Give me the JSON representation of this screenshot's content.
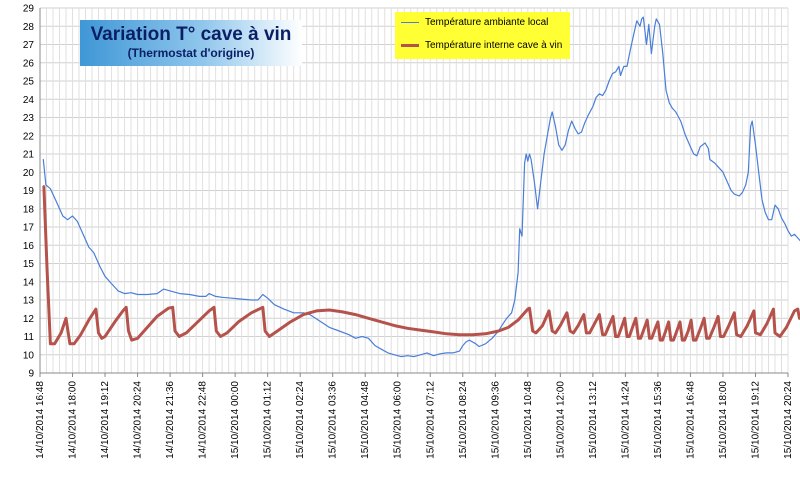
{
  "chart_data": {
    "type": "line",
    "title": "Variation T° cave à vin",
    "subtitle": "(Thermostat d'origine)",
    "xlabel": "",
    "ylabel": "",
    "ylim": [
      9,
      29
    ],
    "yticks": [
      9,
      10,
      11,
      12,
      13,
      14,
      15,
      16,
      17,
      18,
      19,
      20,
      21,
      22,
      23,
      24,
      25,
      26,
      27,
      28,
      29
    ],
    "grid": true,
    "legend_position": "top-center",
    "xtick_labels": [
      "14/10/2014 16:48",
      "14/10/2014 18:00",
      "14/10/2014 19:12",
      "14/10/2014 20:24",
      "14/10/2014 21:36",
      "14/10/2014 22:48",
      "15/10/2014 00:00",
      "15/10/2014 01:12",
      "15/10/2014 02:24",
      "15/10/2014 03:36",
      "15/10/2014 04:48",
      "15/10/2014 06:00",
      "15/10/2014 07:12",
      "15/10/2014 08:24",
      "15/10/2014 09:36",
      "15/10/2014 10:48",
      "15/10/2014 12:00",
      "15/10/2014 13:12",
      "15/10/2014 14:24",
      "15/10/2014 15:36",
      "15/10/2014 16:48",
      "15/10/2014 18:00",
      "15/10/2014 19:12",
      "15/10/2014 20:24"
    ],
    "series": [
      {
        "name": "Température ambiante local",
        "color": "#4a7ed8",
        "points": [
          [
            0.1,
            20.7
          ],
          [
            0.18,
            19.3
          ],
          [
            0.32,
            19.1
          ],
          [
            0.5,
            18.4
          ],
          [
            0.7,
            17.6
          ],
          [
            0.85,
            17.4
          ],
          [
            1.0,
            17.6
          ],
          [
            1.15,
            17.3
          ],
          [
            1.3,
            16.7
          ],
          [
            1.5,
            15.9
          ],
          [
            1.65,
            15.6
          ],
          [
            1.85,
            14.8
          ],
          [
            2.0,
            14.3
          ],
          [
            2.2,
            13.9
          ],
          [
            2.4,
            13.5
          ],
          [
            2.6,
            13.35
          ],
          [
            2.8,
            13.4
          ],
          [
            3.0,
            13.3
          ],
          [
            3.3,
            13.3
          ],
          [
            3.6,
            13.35
          ],
          [
            3.8,
            13.6
          ],
          [
            4.0,
            13.5
          ],
          [
            4.3,
            13.35
          ],
          [
            4.6,
            13.3
          ],
          [
            4.9,
            13.2
          ],
          [
            5.1,
            13.2
          ],
          [
            5.2,
            13.35
          ],
          [
            5.4,
            13.2
          ],
          [
            5.6,
            13.15
          ],
          [
            5.9,
            13.1
          ],
          [
            6.2,
            13.05
          ],
          [
            6.5,
            13.0
          ],
          [
            6.7,
            13.0
          ],
          [
            6.85,
            13.3
          ],
          [
            7.0,
            13.1
          ],
          [
            7.2,
            12.75
          ],
          [
            7.5,
            12.5
          ],
          [
            7.8,
            12.3
          ],
          [
            8.1,
            12.3
          ],
          [
            8.3,
            12.2
          ],
          [
            8.6,
            11.85
          ],
          [
            8.9,
            11.5
          ],
          [
            9.2,
            11.3
          ],
          [
            9.5,
            11.1
          ],
          [
            9.7,
            10.9
          ],
          [
            9.9,
            11.0
          ],
          [
            10.1,
            10.9
          ],
          [
            10.3,
            10.5
          ],
          [
            10.5,
            10.3
          ],
          [
            10.7,
            10.1
          ],
          [
            10.9,
            10.0
          ],
          [
            11.1,
            9.9
          ],
          [
            11.3,
            9.95
          ],
          [
            11.5,
            9.9
          ],
          [
            11.7,
            10.0
          ],
          [
            11.9,
            10.1
          ],
          [
            12.1,
            9.95
          ],
          [
            12.3,
            10.05
          ],
          [
            12.5,
            10.1
          ],
          [
            12.7,
            10.1
          ],
          [
            12.9,
            10.2
          ],
          [
            13.0,
            10.5
          ],
          [
            13.1,
            10.7
          ],
          [
            13.2,
            10.8
          ],
          [
            13.4,
            10.6
          ],
          [
            13.5,
            10.45
          ],
          [
            13.7,
            10.6
          ],
          [
            13.9,
            10.9
          ],
          [
            14.0,
            11.1
          ],
          [
            14.1,
            11.3
          ],
          [
            14.2,
            11.6
          ],
          [
            14.35,
            12.0
          ],
          [
            14.5,
            12.3
          ],
          [
            14.6,
            13.0
          ],
          [
            14.7,
            14.5
          ],
          [
            14.75,
            16.9
          ],
          [
            14.82,
            16.5
          ],
          [
            14.9,
            20.5
          ],
          [
            14.95,
            21.0
          ],
          [
            15.0,
            20.6
          ],
          [
            15.05,
            21.0
          ],
          [
            15.1,
            20.7
          ],
          [
            15.2,
            19.5
          ],
          [
            15.3,
            18.0
          ],
          [
            15.4,
            19.5
          ],
          [
            15.5,
            21.0
          ],
          [
            15.6,
            22.0
          ],
          [
            15.7,
            23.0
          ],
          [
            15.75,
            23.3
          ],
          [
            15.85,
            22.5
          ],
          [
            15.95,
            21.5
          ],
          [
            16.05,
            21.2
          ],
          [
            16.15,
            21.5
          ],
          [
            16.25,
            22.3
          ],
          [
            16.35,
            22.8
          ],
          [
            16.45,
            22.4
          ],
          [
            16.55,
            22.1
          ],
          [
            16.65,
            22.2
          ],
          [
            16.75,
            22.7
          ],
          [
            16.85,
            23.1
          ],
          [
            17.0,
            23.6
          ],
          [
            17.1,
            24.1
          ],
          [
            17.2,
            24.3
          ],
          [
            17.3,
            24.2
          ],
          [
            17.4,
            24.5
          ],
          [
            17.5,
            25.0
          ],
          [
            17.6,
            25.4
          ],
          [
            17.7,
            25.5
          ],
          [
            17.8,
            25.8
          ],
          [
            17.85,
            25.3
          ],
          [
            17.95,
            25.8
          ],
          [
            18.05,
            25.8
          ],
          [
            18.15,
            26.7
          ],
          [
            18.25,
            27.5
          ],
          [
            18.35,
            28.3
          ],
          [
            18.45,
            28.0
          ],
          [
            18.5,
            28.4
          ],
          [
            18.55,
            28.5
          ],
          [
            18.65,
            27.0
          ],
          [
            18.72,
            28.1
          ],
          [
            18.8,
            26.5
          ],
          [
            18.9,
            28.0
          ],
          [
            18.95,
            28.4
          ],
          [
            19.05,
            28.1
          ],
          [
            19.15,
            26.5
          ],
          [
            19.25,
            24.5
          ],
          [
            19.35,
            23.8
          ],
          [
            19.45,
            23.5
          ],
          [
            19.55,
            23.3
          ],
          [
            19.7,
            22.8
          ],
          [
            19.85,
            22.0
          ],
          [
            20.0,
            21.4
          ],
          [
            20.1,
            21.0
          ],
          [
            20.2,
            20.9
          ],
          [
            20.3,
            21.4
          ],
          [
            20.45,
            21.6
          ],
          [
            20.55,
            21.3
          ],
          [
            20.6,
            20.7
          ],
          [
            20.75,
            20.5
          ],
          [
            20.85,
            20.3
          ],
          [
            21.0,
            20.0
          ],
          [
            21.1,
            19.6
          ],
          [
            21.25,
            19.0
          ],
          [
            21.35,
            18.8
          ],
          [
            21.5,
            18.7
          ],
          [
            21.6,
            18.9
          ],
          [
            21.7,
            19.3
          ],
          [
            21.78,
            20.0
          ],
          [
            21.85,
            22.5
          ],
          [
            21.9,
            22.8
          ],
          [
            22.0,
            21.5
          ],
          [
            22.1,
            20.0
          ],
          [
            22.2,
            18.5
          ],
          [
            22.3,
            17.8
          ],
          [
            22.4,
            17.4
          ],
          [
            22.5,
            17.4
          ],
          [
            22.6,
            18.2
          ],
          [
            22.7,
            18.0
          ],
          [
            22.8,
            17.5
          ],
          [
            22.9,
            17.2
          ],
          [
            23.0,
            16.8
          ],
          [
            23.1,
            16.5
          ],
          [
            23.2,
            16.6
          ],
          [
            23.3,
            16.4
          ],
          [
            23.4,
            16.2
          ],
          [
            23.5,
            16.1
          ],
          [
            23.6,
            16.1
          ],
          [
            23.7,
            16.1
          ],
          [
            23.75,
            16.1
          ]
        ]
      },
      {
        "name": "Température interne cave à vin",
        "color": "#b5524b",
        "points": [
          [
            0.12,
            19.2
          ],
          [
            0.22,
            14.5
          ],
          [
            0.32,
            10.6
          ],
          [
            0.45,
            10.6
          ],
          [
            0.65,
            11.2
          ],
          [
            0.8,
            12.0
          ],
          [
            0.92,
            10.6
          ],
          [
            1.05,
            10.6
          ],
          [
            1.25,
            11.1
          ],
          [
            1.5,
            11.9
          ],
          [
            1.72,
            12.5
          ],
          [
            1.8,
            11.2
          ],
          [
            1.9,
            10.9
          ],
          [
            2.0,
            11.0
          ],
          [
            2.3,
            11.8
          ],
          [
            2.55,
            12.4
          ],
          [
            2.65,
            12.6
          ],
          [
            2.72,
            11.3
          ],
          [
            2.82,
            10.8
          ],
          [
            3.0,
            10.9
          ],
          [
            3.3,
            11.5
          ],
          [
            3.6,
            12.1
          ],
          [
            3.95,
            12.55
          ],
          [
            4.08,
            12.6
          ],
          [
            4.15,
            11.3
          ],
          [
            4.28,
            11.0
          ],
          [
            4.5,
            11.2
          ],
          [
            4.85,
            11.8
          ],
          [
            5.2,
            12.4
          ],
          [
            5.35,
            12.6
          ],
          [
            5.42,
            11.3
          ],
          [
            5.55,
            11.0
          ],
          [
            5.75,
            11.2
          ],
          [
            6.1,
            11.8
          ],
          [
            6.5,
            12.3
          ],
          [
            6.85,
            12.6
          ],
          [
            6.92,
            11.3
          ],
          [
            7.05,
            11.0
          ],
          [
            7.3,
            11.3
          ],
          [
            7.7,
            11.8
          ],
          [
            8.1,
            12.2
          ],
          [
            8.5,
            12.4
          ],
          [
            8.9,
            12.45
          ],
          [
            9.3,
            12.35
          ],
          [
            9.7,
            12.2
          ],
          [
            10.1,
            12.0
          ],
          [
            10.5,
            11.8
          ],
          [
            10.9,
            11.6
          ],
          [
            11.3,
            11.45
          ],
          [
            11.7,
            11.35
          ],
          [
            12.1,
            11.25
          ],
          [
            12.5,
            11.15
          ],
          [
            12.9,
            11.1
          ],
          [
            13.3,
            11.1
          ],
          [
            13.7,
            11.15
          ],
          [
            14.1,
            11.3
          ],
          [
            14.4,
            11.5
          ],
          [
            14.7,
            11.9
          ],
          [
            15.0,
            12.5
          ],
          [
            15.05,
            12.55
          ],
          [
            15.15,
            11.3
          ],
          [
            15.25,
            11.2
          ],
          [
            15.45,
            11.6
          ],
          [
            15.65,
            12.4
          ],
          [
            15.75,
            11.3
          ],
          [
            15.85,
            11.2
          ],
          [
            16.0,
            11.6
          ],
          [
            16.2,
            12.3
          ],
          [
            16.3,
            11.3
          ],
          [
            16.4,
            11.2
          ],
          [
            16.55,
            11.6
          ],
          [
            16.72,
            12.2
          ],
          [
            16.8,
            11.2
          ],
          [
            16.9,
            11.2
          ],
          [
            17.05,
            11.7
          ],
          [
            17.2,
            12.2
          ],
          [
            17.3,
            11.1
          ],
          [
            17.38,
            11.1
          ],
          [
            17.5,
            11.6
          ],
          [
            17.62,
            12.1
          ],
          [
            17.7,
            11.0
          ],
          [
            17.78,
            11.0
          ],
          [
            17.88,
            11.5
          ],
          [
            17.98,
            12.0
          ],
          [
            18.05,
            11.0
          ],
          [
            18.12,
            11.0
          ],
          [
            18.22,
            11.5
          ],
          [
            18.32,
            12.0
          ],
          [
            18.4,
            10.9
          ],
          [
            18.47,
            10.9
          ],
          [
            18.57,
            11.4
          ],
          [
            18.67,
            11.9
          ],
          [
            18.74,
            10.9
          ],
          [
            18.81,
            10.9
          ],
          [
            18.91,
            11.4
          ],
          [
            19.0,
            11.8
          ],
          [
            19.07,
            10.8
          ],
          [
            19.14,
            10.8
          ],
          [
            19.24,
            11.3
          ],
          [
            19.33,
            11.8
          ],
          [
            19.4,
            10.8
          ],
          [
            19.48,
            10.8
          ],
          [
            19.58,
            11.3
          ],
          [
            19.68,
            11.8
          ],
          [
            19.75,
            10.8
          ],
          [
            19.82,
            10.8
          ],
          [
            19.93,
            11.3
          ],
          [
            20.02,
            11.9
          ],
          [
            20.09,
            10.8
          ],
          [
            20.17,
            10.8
          ],
          [
            20.3,
            11.4
          ],
          [
            20.42,
            12.0
          ],
          [
            20.5,
            10.9
          ],
          [
            20.58,
            10.9
          ],
          [
            20.72,
            11.5
          ],
          [
            20.85,
            12.1
          ],
          [
            20.92,
            11.0
          ],
          [
            21.02,
            11.0
          ],
          [
            21.18,
            11.6
          ],
          [
            21.35,
            12.3
          ],
          [
            21.42,
            11.1
          ],
          [
            21.55,
            11.0
          ],
          [
            21.75,
            11.6
          ],
          [
            21.95,
            12.4
          ],
          [
            22.0,
            11.2
          ],
          [
            22.15,
            11.1
          ],
          [
            22.35,
            11.7
          ],
          [
            22.55,
            12.5
          ],
          [
            22.6,
            11.2
          ],
          [
            22.75,
            11.0
          ],
          [
            22.95,
            11.5
          ],
          [
            23.2,
            12.4
          ],
          [
            23.3,
            12.5
          ],
          [
            23.35,
            12.0
          ]
        ]
      }
    ]
  }
}
